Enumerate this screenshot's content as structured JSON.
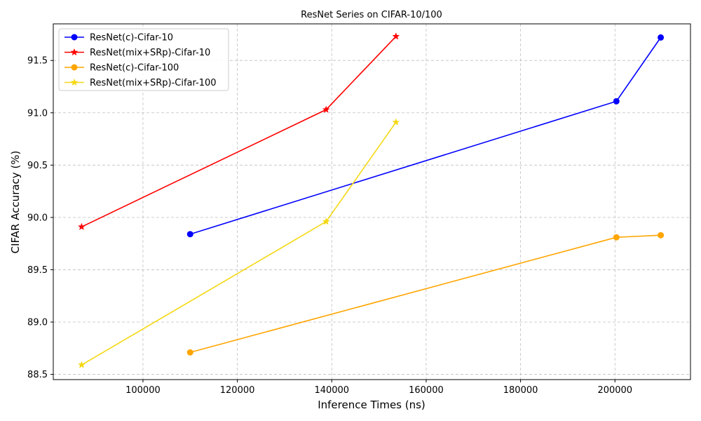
{
  "chart_data": {
    "type": "line",
    "title": "ResNet Series on CIFAR-10/100",
    "xlabel": "Inference Times  (ns)",
    "ylabel": "CIFAR Accuracy (%)",
    "xlim": [
      81000,
      216000
    ],
    "ylim": [
      88.45,
      91.85
    ],
    "xticks": [
      100000,
      120000,
      140000,
      160000,
      180000,
      200000
    ],
    "xtick_labels": [
      "100000",
      "120000",
      "140000",
      "160000",
      "180000",
      "200000"
    ],
    "yticks": [
      88.5,
      89.0,
      89.5,
      90.0,
      90.5,
      91.0,
      91.5
    ],
    "ytick_labels": [
      "88.5",
      "89.0",
      "89.5",
      "90.0",
      "90.5",
      "91.0",
      "91.5"
    ],
    "grid": true,
    "legend_position": "top-left",
    "series": [
      {
        "name": "ResNet(c)-Cifar-10",
        "color": "#0000ff",
        "marker": "circle",
        "x": [
          110000,
          200300,
          209700
        ],
        "y": [
          89.84,
          91.11,
          91.72
        ]
      },
      {
        "name": "ResNet(mix+SRp)-Cifar-10",
        "color": "#ff0000",
        "marker": "star",
        "x": [
          87000,
          138800,
          153600
        ],
        "y": [
          89.91,
          91.03,
          91.73
        ]
      },
      {
        "name": "ResNet(c)-Cifar-100",
        "color": "#ffa500",
        "marker": "circle",
        "x": [
          110000,
          200300,
          209700
        ],
        "y": [
          88.71,
          89.81,
          89.83
        ]
      },
      {
        "name": "ResNet(mix+SRp)-Cifar-100",
        "color": "#f5d813",
        "marker": "star",
        "x": [
          87000,
          138800,
          153600
        ],
        "y": [
          88.59,
          89.96,
          90.91
        ]
      }
    ]
  }
}
